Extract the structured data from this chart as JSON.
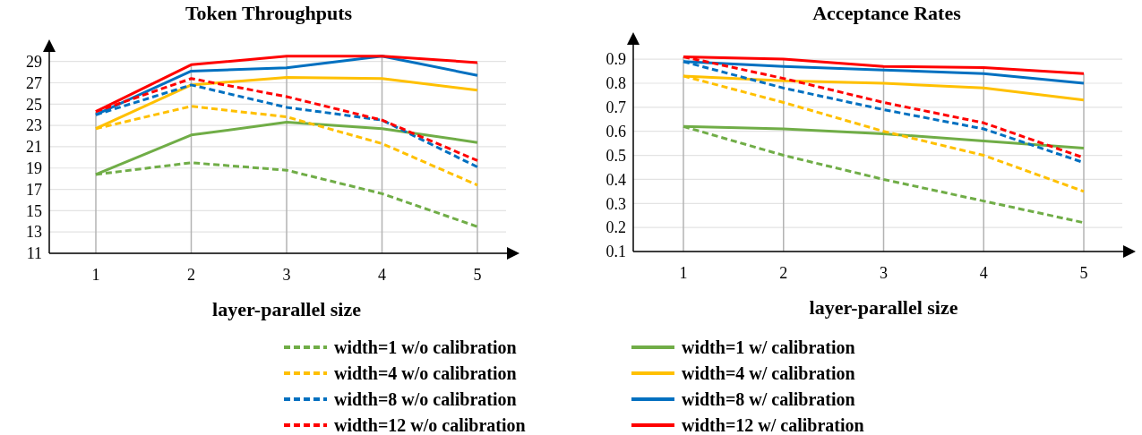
{
  "chart_data": [
    {
      "type": "line",
      "title": "Token Throughputs",
      "xlabel": "layer-parallel size",
      "categories": [
        "1",
        "2",
        "3",
        "4",
        "5"
      ],
      "ylim": [
        11,
        29.9
      ],
      "yticks": [
        11,
        13,
        15,
        17,
        19,
        21,
        23,
        25,
        27,
        29
      ],
      "grid": true,
      "legend": "bottom",
      "series": [
        {
          "name": "width=1 w/o calibration",
          "color": "#70ad47",
          "line_style": "dashed",
          "values": [
            18.4,
            19.5,
            18.8,
            16.6,
            13.5
          ]
        },
        {
          "name": "width=1 w/ calibration",
          "color": "#70ad47",
          "line_style": "solid",
          "values": [
            18.4,
            22.1,
            23.3,
            22.7,
            21.4
          ]
        },
        {
          "name": "width=4 w/o calibration",
          "color": "#ffc000",
          "line_style": "dashed",
          "values": [
            22.7,
            24.8,
            23.8,
            21.3,
            17.4
          ]
        },
        {
          "name": "width=4 w/ calibration",
          "color": "#ffc000",
          "line_style": "solid",
          "values": [
            22.7,
            26.8,
            27.5,
            27.4,
            26.3
          ]
        },
        {
          "name": "width=8 w/o calibration",
          "color": "#0070c0",
          "line_style": "dashed",
          "values": [
            24.0,
            26.8,
            24.7,
            23.5,
            19.1
          ]
        },
        {
          "name": "width=8 w/ calibration",
          "color": "#0070c0",
          "line_style": "solid",
          "values": [
            24.0,
            28.1,
            28.4,
            29.5,
            27.7
          ]
        },
        {
          "name": "width=12 w/o calibration",
          "color": "#ff0000",
          "line_style": "dashed",
          "values": [
            24.3,
            27.4,
            25.7,
            23.5,
            19.7
          ]
        },
        {
          "name": "width=12 w/ calibration",
          "color": "#ff0000",
          "line_style": "solid",
          "values": [
            24.3,
            28.7,
            29.5,
            29.5,
            28.9
          ]
        }
      ]
    },
    {
      "type": "line",
      "title": "Acceptance Rates",
      "xlabel": "layer-parallel size",
      "categories": [
        "1",
        "2",
        "3",
        "4",
        "5"
      ],
      "ylim": [
        0.1,
        0.96
      ],
      "yticks": [
        0.1,
        0.2,
        0.3,
        0.4,
        0.5,
        0.6,
        0.7,
        0.8,
        0.9
      ],
      "grid": true,
      "series": [
        {
          "color": "#70ad47",
          "line_style": "dashed",
          "values": [
            0.62,
            0.5,
            0.4,
            0.31,
            0.22
          ]
        },
        {
          "color": "#70ad47",
          "line_style": "solid",
          "values": [
            0.62,
            0.61,
            0.59,
            0.56,
            0.53
          ]
        },
        {
          "color": "#ffc000",
          "line_style": "dashed",
          "values": [
            0.83,
            0.72,
            0.6,
            0.5,
            0.35
          ]
        },
        {
          "color": "#ffc000",
          "line_style": "solid",
          "values": [
            0.83,
            0.81,
            0.8,
            0.78,
            0.73
          ]
        },
        {
          "color": "#0070c0",
          "line_style": "dashed",
          "values": [
            0.89,
            0.78,
            0.69,
            0.61,
            0.47
          ]
        },
        {
          "color": "#0070c0",
          "line_style": "solid",
          "values": [
            0.89,
            0.87,
            0.855,
            0.84,
            0.8
          ]
        },
        {
          "color": "#ff0000",
          "line_style": "dashed",
          "values": [
            0.91,
            0.82,
            0.72,
            0.635,
            0.49
          ]
        },
        {
          "color": "#ff0000",
          "line_style": "solid",
          "values": [
            0.91,
            0.9,
            0.87,
            0.865,
            0.84
          ]
        }
      ]
    }
  ]
}
